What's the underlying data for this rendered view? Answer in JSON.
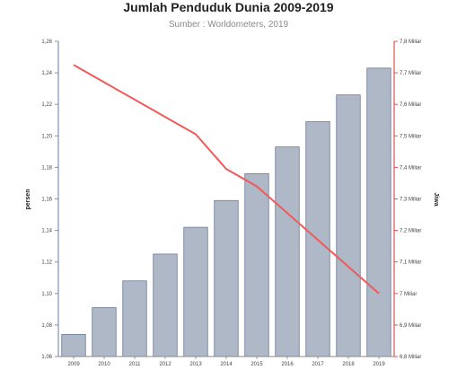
{
  "chart_data": {
    "type": "bar",
    "title": "Jumlah Penduduk Dunia 2009-2019",
    "subtitle": "Sumber : Worldometers, 2019",
    "categories": [
      "2009",
      "2010",
      "2011",
      "2012",
      "2013",
      "2014",
      "2015",
      "2016",
      "2017",
      "2018",
      "2019"
    ],
    "ylabel_left": "persen",
    "ylabel_right": "Jiwa",
    "ylim_left": [
      1.06,
      1.26
    ],
    "ylim_right": [
      6.8,
      7.8
    ],
    "left_ticks": [
      "1,06",
      "1,08",
      "1,10",
      "1,12",
      "1,14",
      "1,16",
      "1,18",
      "1,20",
      "1,22",
      "1,24",
      "1,26"
    ],
    "right_ticks": [
      "6,8 Miliar",
      "6,9 Miliar",
      "7 Miliar",
      "7,1 Miliar",
      "7,2 Miliar",
      "7,3 Miliar",
      "7,4 Miliar",
      "7,5 Miliar",
      "7,6 Miliar",
      "7,7 Miliar",
      "7,8 Miliar"
    ],
    "grid": false,
    "series": [
      {
        "type": "bar",
        "axis": "left",
        "color": "#aeb8c6",
        "values": [
          1.074,
          1.091,
          1.108,
          1.125,
          1.142,
          1.159,
          1.176,
          1.193,
          1.209,
          1.226,
          1.243
        ]
      },
      {
        "type": "line",
        "axis": "left",
        "color": "#f05a5a",
        "values": [
          1.245,
          1.234,
          1.223,
          1.212,
          1.201,
          1.179,
          1.168,
          1.151,
          1.134,
          1.117,
          1.1
        ]
      }
    ],
    "colors": {
      "bar_edge": "#6b7a99",
      "left_axis": "#8093b0",
      "right_axis": "#e05252"
    }
  }
}
